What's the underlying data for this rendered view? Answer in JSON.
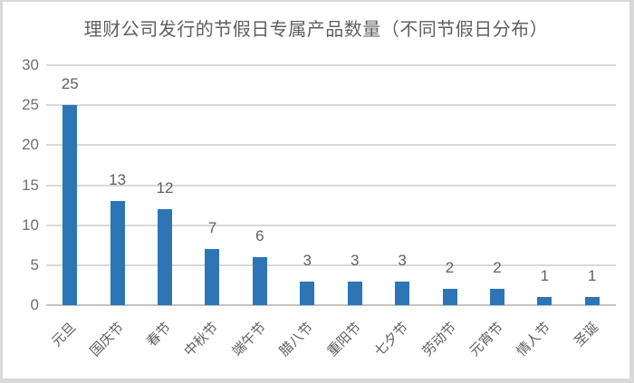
{
  "chart_data": {
    "type": "bar",
    "title": "理财公司发行的节假日专属产品数量（不同节假日分布）",
    "categories": [
      "元旦",
      "国庆节",
      "春节",
      "中秋节",
      "端午节",
      "腊八节",
      "重阳节",
      "七夕节",
      "劳动节",
      "元宵节",
      "情人节",
      "圣诞"
    ],
    "values": [
      25,
      13,
      12,
      7,
      6,
      3,
      3,
      3,
      2,
      2,
      1,
      1
    ],
    "xlabel": "",
    "ylabel": "",
    "ylim": [
      0,
      30
    ],
    "yticks": [
      0,
      5,
      10,
      15,
      20,
      25,
      30
    ],
    "grid": true,
    "data_labels": true,
    "legend": "none",
    "colors": {
      "bar": "#2e75b6",
      "gridline": "#d9d9d9",
      "axis_line": "#c3c3c3",
      "tick_text": "#6e6e6e",
      "label_text": "#5f5f5f",
      "title_text": "#5f5f5f",
      "frame_border": "#d9d9d9",
      "background": "#ffffff"
    }
  }
}
